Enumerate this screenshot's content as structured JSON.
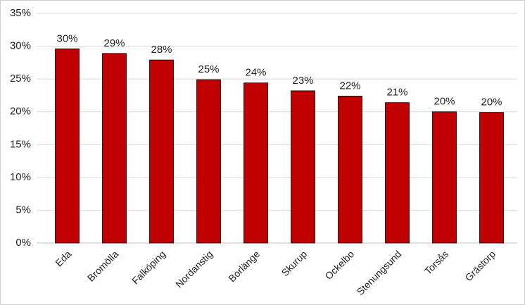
{
  "chart_data": {
    "type": "bar",
    "categories": [
      "Eda",
      "Bromölla",
      "Falköping",
      "Nordanstig",
      "Borlänge",
      "Skurup",
      "Ockelbo",
      "Stenungsund",
      "Torsås",
      "Grästorp"
    ],
    "values": [
      29.6,
      28.9,
      27.9,
      24.9,
      24.4,
      23.2,
      22.4,
      21.4,
      20.0,
      19.9
    ],
    "value_labels": [
      "30%",
      "29%",
      "28%",
      "25%",
      "24%",
      "23%",
      "22%",
      "21%",
      "20%",
      "20%"
    ],
    "color": "#c00000",
    "ylim": [
      0,
      35
    ],
    "yticks": [
      {
        "value": 0,
        "label": "0%"
      },
      {
        "value": 5,
        "label": "5%"
      },
      {
        "value": 10,
        "label": "10%"
      },
      {
        "value": 15,
        "label": "15%"
      },
      {
        "value": 20,
        "label": "20%"
      },
      {
        "value": 25,
        "label": "25%"
      },
      {
        "value": 30,
        "label": "30%"
      },
      {
        "value": 35,
        "label": "35%"
      }
    ],
    "grid": true
  }
}
